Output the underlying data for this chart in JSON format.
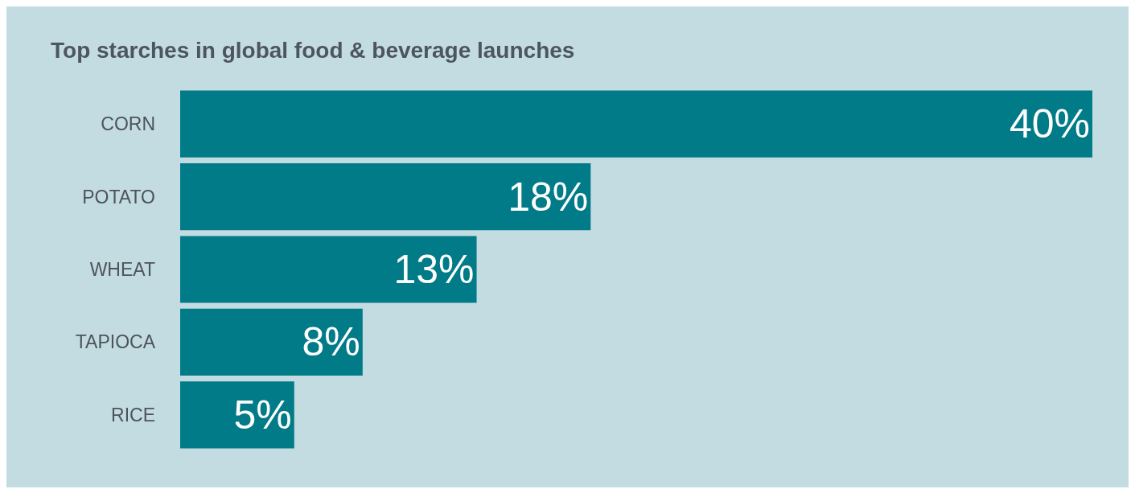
{
  "chart_data": {
    "type": "bar",
    "orientation": "horizontal",
    "title": "Top starches in global food & beverage launches",
    "categories": [
      "CORN",
      "POTATO",
      "WHEAT",
      "TAPIOCA",
      "RICE"
    ],
    "values": [
      40,
      18,
      13,
      8,
      5
    ],
    "value_labels": [
      "40%",
      "18%",
      "13%",
      "8%",
      "5%"
    ],
    "color": "#007b87",
    "xlim": [
      0,
      40
    ],
    "tick_labels": "y",
    "grid": false,
    "legend": false
  }
}
